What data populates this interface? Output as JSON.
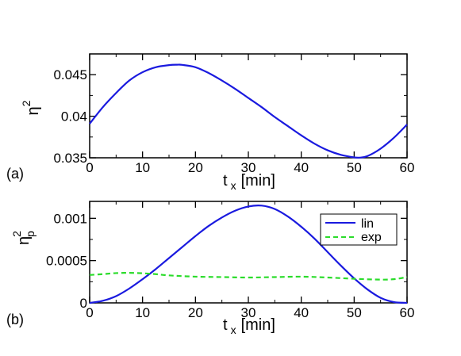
{
  "colors": {
    "lin": "#1a1adf",
    "exp": "#2bdc2b",
    "axis": "#000000",
    "background": "#ffffff"
  },
  "chart_data": [
    {
      "type": "line",
      "panel_label": "(a)",
      "xlabel": "t",
      "xlabel_sub": "x",
      "xlabel_unit": "[min]",
      "ylabel": "η",
      "ylabel_sup": "2",
      "ylabel_sub": "",
      "xlim": [
        0,
        60
      ],
      "ylim": [
        0.035,
        0.0475
      ],
      "xticks": [
        0,
        10,
        20,
        30,
        40,
        50,
        60
      ],
      "yticks": [
        0.035,
        0.04,
        0.045
      ],
      "ytick_labels": [
        "0.035",
        "0.04",
        "0.045"
      ],
      "legend": null,
      "series": [
        {
          "name": "",
          "style": "solid",
          "color": "#1a1adf",
          "x": [
            0,
            2.5,
            5,
            7.5,
            10,
            12.5,
            15,
            16.5,
            17.5,
            20,
            22.5,
            25,
            27.5,
            30,
            32.5,
            35,
            37.5,
            40,
            42.5,
            45,
            47.5,
            50,
            51,
            52.5,
            55,
            57.5,
            60
          ],
          "y": [
            0.0391,
            0.0411,
            0.0428,
            0.0443,
            0.0453,
            0.0459,
            0.04615,
            0.0462,
            0.04618,
            0.0459,
            0.0452,
            0.0443,
            0.0433,
            0.0422,
            0.0411,
            0.0399,
            0.0388,
            0.0377,
            0.0367,
            0.0359,
            0.03535,
            0.03505,
            0.03502,
            0.0352,
            0.0361,
            0.0374,
            0.039
          ]
        }
      ]
    },
    {
      "type": "line",
      "panel_label": "(b)",
      "xlabel": "t",
      "xlabel_sub": "x",
      "xlabel_unit": "[min]",
      "ylabel": "η",
      "ylabel_sup": "2",
      "ylabel_sub": "p",
      "xlim": [
        0,
        60
      ],
      "ylim": [
        0,
        0.0012
      ],
      "xticks": [
        0,
        10,
        20,
        30,
        40,
        50,
        60
      ],
      "yticks": [
        0,
        0.0005,
        0.001
      ],
      "ytick_labels": [
        "0",
        "0.0005",
        "0.001"
      ],
      "legend": {
        "position": "top-right",
        "entries": [
          "lin",
          "exp"
        ]
      },
      "series": [
        {
          "name": "lin",
          "style": "solid",
          "color": "#1a1adf",
          "x": [
            0,
            2.5,
            5,
            7.5,
            10,
            12.5,
            15,
            17.5,
            20,
            22.5,
            25,
            27.5,
            30,
            32.5,
            35,
            37.5,
            40,
            42.5,
            45,
            47.5,
            50,
            52.5,
            55,
            57.5,
            60
          ],
          "y": [
            0,
            2.5e-05,
            8e-05,
            0.00017,
            0.00028,
            0.0004,
            0.00053,
            0.00066,
            0.00079,
            0.00091,
            0.00101,
            0.00109,
            0.00114,
            0.00115,
            0.00111,
            0.00102,
            0.0009,
            0.00076,
            0.0006,
            0.00044,
            0.00029,
            0.00016,
            6e-05,
            1e-05,
            0
          ]
        },
        {
          "name": "exp",
          "style": "dashed",
          "color": "#2bdc2b",
          "x": [
            0,
            2.5,
            5,
            7.5,
            10,
            12.5,
            15,
            20,
            25,
            30,
            35,
            40,
            45,
            50,
            55,
            57.5,
            60
          ],
          "y": [
            0.00033,
            0.00034,
            0.000352,
            0.000355,
            0.00035,
            0.00034,
            0.000325,
            0.00031,
            0.000305,
            0.0003,
            0.000305,
            0.00031,
            0.0003,
            0.000285,
            0.000275,
            0.00028,
            0.000305
          ]
        }
      ]
    }
  ]
}
